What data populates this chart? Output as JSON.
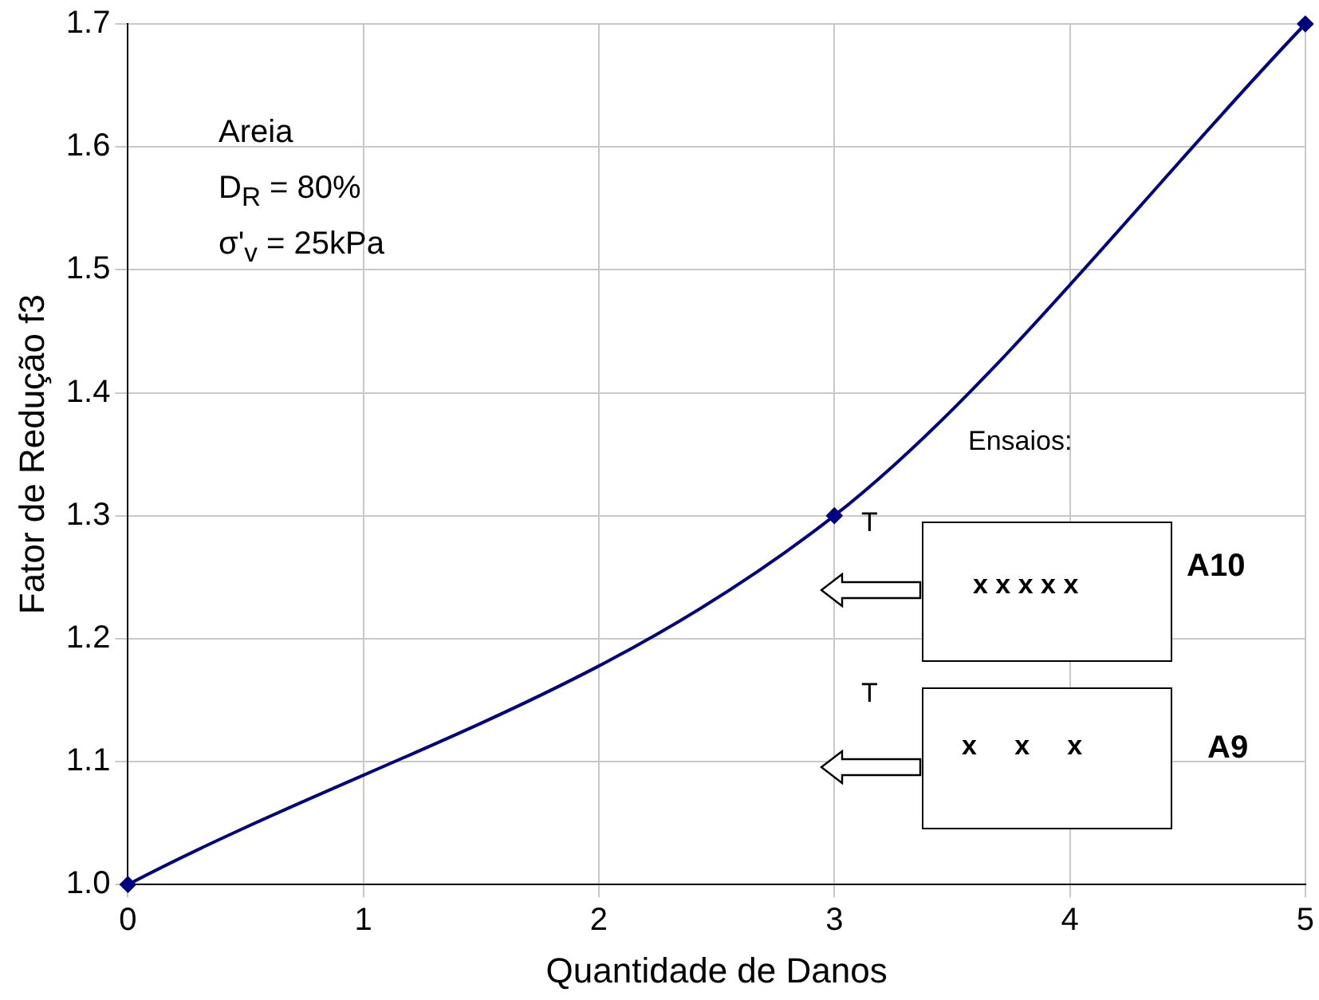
{
  "chart_data": {
    "type": "line",
    "xlabel": "Quantidade de Danos",
    "ylabel": "Fator de Redução f3",
    "x": [
      0,
      3,
      5
    ],
    "series": [
      {
        "color": "#000080",
        "values": [
          1.0,
          1.3,
          1.7
        ]
      }
    ],
    "xlim": [
      0,
      5
    ],
    "xticks": [
      0,
      1,
      2,
      3,
      4,
      5
    ],
    "ylim": [
      1.0,
      1.7
    ],
    "yticks": [
      {
        "value": 1.0,
        "label": "1.0"
      },
      1.1,
      1.2,
      1.3,
      1.4,
      1.5,
      1.6,
      1.7
    ],
    "grid": true,
    "legend": false,
    "marker": "diamond",
    "line_style": "solid",
    "annotations": [
      "Areia",
      "D$_{R}$ = 80%",
      "σ'$_{v}$ = 25kPa",
      "Ensaios:",
      "T",
      "x x x x x",
      "A10",
      "T",
      "x     x     x",
      "A9"
    ]
  }
}
